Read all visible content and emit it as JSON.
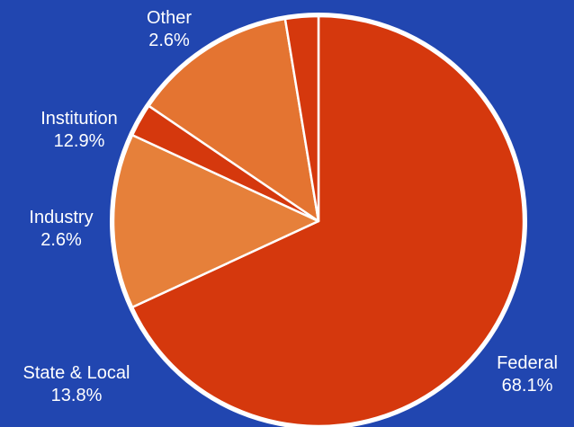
{
  "colors": {
    "background": "#2146b0",
    "outline": "#ffffff",
    "federal": "#d5380d",
    "state_local": "#e6803a",
    "industry": "#d5380d",
    "institution": "#e47431",
    "other": "#d5380d"
  },
  "chart_data": {
    "type": "pie",
    "title": "",
    "start": "top",
    "direction": "clockwise",
    "slices": [
      {
        "key": "federal",
        "label": "Federal",
        "value": 68.1,
        "display": "68.1%"
      },
      {
        "key": "state_local",
        "label": "State & Local",
        "value": 13.8,
        "display": "13.8%"
      },
      {
        "key": "industry",
        "label": "Industry",
        "value": 2.6,
        "display": "2.6%"
      },
      {
        "key": "institution",
        "label": "Institution",
        "value": 12.9,
        "display": "12.9%"
      },
      {
        "key": "other",
        "label": "Other",
        "value": 2.6,
        "display": "2.6%"
      }
    ]
  }
}
